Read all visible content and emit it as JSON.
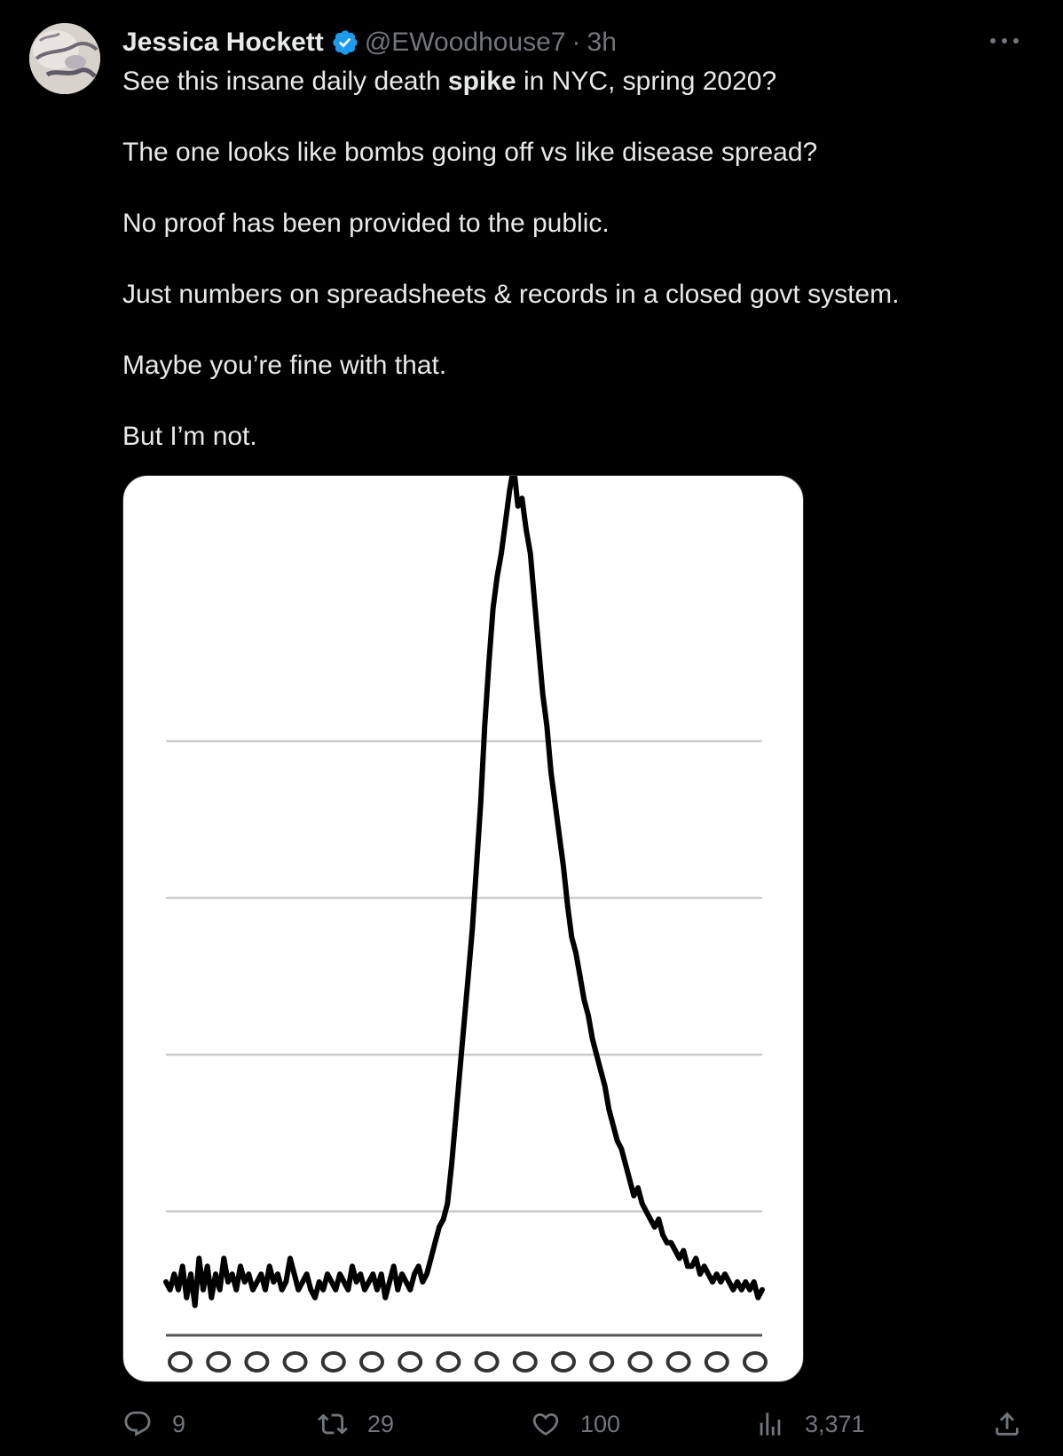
{
  "tweet": {
    "author": {
      "display_name": "Jessica Hockett",
      "handle": "@EWoodhouse7",
      "verified": true,
      "verified_color": "#1d9bf0",
      "avatar": "avatar-image"
    },
    "separator": "·",
    "time": "3h",
    "text": {
      "line1_before": "See this insane daily death ",
      "line1_bold": "spike",
      "line1_after": " in NYC, spring 2020?",
      "line2": "The one looks like bombs going off vs like disease spread?",
      "line3": "No proof has been provided to the public.",
      "line4": "Just numbers on spreadsheets & records in a closed govt system.",
      "line5": "Maybe you’re fine with that.",
      "line6": "But I’m not."
    },
    "actions": {
      "replies": "9",
      "retweets": "29",
      "likes": "100",
      "views": "3,371"
    }
  },
  "colors": {
    "background": "#000000",
    "text": "#e7e9ea",
    "muted": "#71767b",
    "chart_line": "#000000",
    "chart_bg": "#ffffff",
    "gridline": "#cccccc"
  },
  "chart_data": {
    "type": "line",
    "title": "",
    "xlabel": "",
    "ylabel": "",
    "grid": true,
    "x_tick_labels_visible": false,
    "ylim": [
      0,
      115
    ],
    "gridline_values": [
      20,
      40,
      60,
      80
    ],
    "series": [
      {
        "values": [
          11,
          10,
          12,
          10,
          13,
          9,
          12,
          8,
          14,
          10,
          13,
          9,
          12,
          10,
          14,
          11,
          12,
          10,
          13,
          11,
          12,
          10,
          11,
          12,
          10,
          13,
          11,
          12,
          10,
          11,
          14,
          12,
          10,
          11,
          12,
          10,
          9,
          11,
          10,
          12,
          11,
          10,
          12,
          11,
          10,
          13,
          11,
          12,
          10,
          11,
          12,
          10,
          12,
          9,
          11,
          13,
          10,
          12,
          11,
          10,
          12,
          13,
          11,
          12,
          14,
          16,
          18,
          19,
          21,
          26,
          32,
          38,
          44,
          50,
          56,
          64,
          72,
          82,
          90,
          97,
          101,
          104,
          108,
          112,
          115,
          110,
          111,
          107,
          104,
          98,
          92,
          86,
          82,
          76,
          72,
          68,
          64,
          59,
          55,
          53,
          50,
          47,
          45,
          42,
          40,
          38,
          36,
          33,
          31,
          29,
          28,
          26,
          24,
          22,
          23,
          21,
          20,
          19,
          18,
          19,
          17,
          16,
          16,
          15,
          14,
          15,
          13,
          13,
          14,
          12,
          13,
          12,
          11,
          12,
          11,
          12,
          11,
          10,
          11,
          10,
          11,
          10,
          11,
          9,
          10
        ]
      }
    ]
  }
}
